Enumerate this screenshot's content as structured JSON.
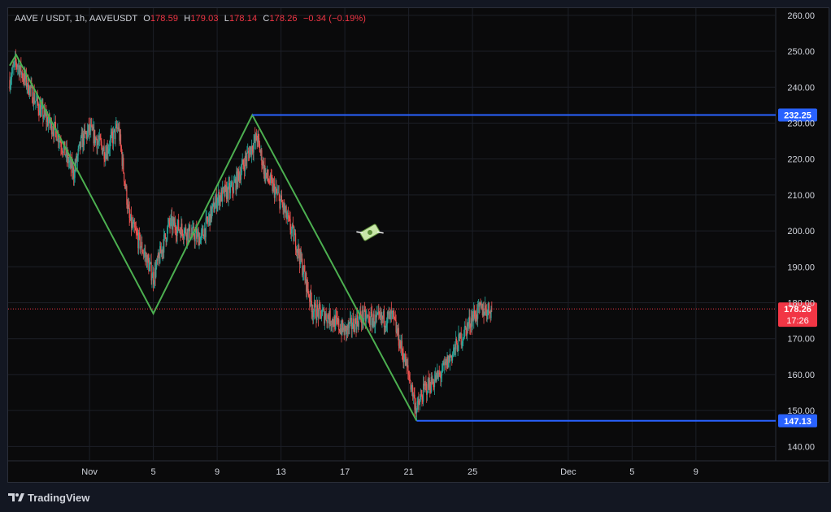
{
  "legend": {
    "symbol": "AAVE / USDT, 1h, AAVEUSDT",
    "open_label": "O",
    "open": "178.59",
    "high_label": "H",
    "high": "179.03",
    "low_label": "L",
    "low": "178.14",
    "close_label": "C",
    "close": "178.26",
    "change": "−0.34 (−0.19%)"
  },
  "branding": {
    "name": "TradingView"
  },
  "colors": {
    "background": "#0a0a0b",
    "up": "#26a69a",
    "down": "#ef5350",
    "zigzag": "#4caf50",
    "level": "#2962ff",
    "price_label": "#f23645"
  },
  "chart_data": {
    "type": "candlestick",
    "timeframe": "1h",
    "y_ticks": [
      "140.00",
      "150.00",
      "160.00",
      "170.00",
      "180.00",
      "190.00",
      "200.00",
      "210.00",
      "220.00",
      "230.00",
      "240.00",
      "250.00",
      "260.00"
    ],
    "ylim": [
      136,
      262
    ],
    "x_ticks": [
      {
        "label": "Nov",
        "day": 1
      },
      {
        "label": "5",
        "day": 5
      },
      {
        "label": "9",
        "day": 9
      },
      {
        "label": "13",
        "day": 13
      },
      {
        "label": "17",
        "day": 17
      },
      {
        "label": "21",
        "day": 21
      },
      {
        "label": "25",
        "day": 25
      },
      {
        "label": "Dec",
        "day": 31
      },
      {
        "label": "5",
        "day": 35
      },
      {
        "label": "9",
        "day": 39
      }
    ],
    "xlim_days": [
      -4.1,
      44.0
    ],
    "price_path": [
      {
        "day": -4.0,
        "price": 242
      },
      {
        "day": -3.6,
        "price": 247
      },
      {
        "day": -2.0,
        "price": 233
      },
      {
        "day": -1.0,
        "price": 227
      },
      {
        "day": 0.0,
        "price": 216
      },
      {
        "day": 0.5,
        "price": 225
      },
      {
        "day": 1.0,
        "price": 228
      },
      {
        "day": 2.0,
        "price": 222
      },
      {
        "day": 2.8,
        "price": 229
      },
      {
        "day": 3.5,
        "price": 203
      },
      {
        "day": 4.5,
        "price": 193
      },
      {
        "day": 5.0,
        "price": 187
      },
      {
        "day": 6.0,
        "price": 202
      },
      {
        "day": 7.0,
        "price": 200
      },
      {
        "day": 8.0,
        "price": 198
      },
      {
        "day": 9.0,
        "price": 209
      },
      {
        "day": 10.0,
        "price": 212
      },
      {
        "day": 11.0,
        "price": 222
      },
      {
        "day": 11.5,
        "price": 226
      },
      {
        "day": 12.0,
        "price": 216
      },
      {
        "day": 13.0,
        "price": 208
      },
      {
        "day": 14.0,
        "price": 196
      },
      {
        "day": 15.0,
        "price": 178
      },
      {
        "day": 16.0,
        "price": 176
      },
      {
        "day": 17.0,
        "price": 172
      },
      {
        "day": 18.0,
        "price": 176
      },
      {
        "day": 19.0,
        "price": 175
      },
      {
        "day": 20.0,
        "price": 176
      },
      {
        "day": 21.0,
        "price": 160
      },
      {
        "day": 21.5,
        "price": 150
      },
      {
        "day": 22.0,
        "price": 156
      },
      {
        "day": 23.0,
        "price": 160
      },
      {
        "day": 24.0,
        "price": 168
      },
      {
        "day": 25.0,
        "price": 176
      },
      {
        "day": 25.5,
        "price": 178
      },
      {
        "day": 26.2,
        "price": 178.26
      }
    ],
    "zigzag": [
      {
        "day": -4.0,
        "price": 246
      },
      {
        "day": -3.6,
        "price": 249
      },
      {
        "day": 5.0,
        "price": 177
      },
      {
        "day": 11.2,
        "price": 232.25
      },
      {
        "day": 21.5,
        "price": 147.13
      }
    ],
    "levels": [
      {
        "value": 232.25,
        "label": "232.25",
        "from_day": 11.2
      },
      {
        "value": 147.13,
        "label": "147.13",
        "from_day": 21.5
      }
    ],
    "last_price": {
      "value": 178.26,
      "label": "178.26",
      "countdown": "17:26"
    }
  }
}
